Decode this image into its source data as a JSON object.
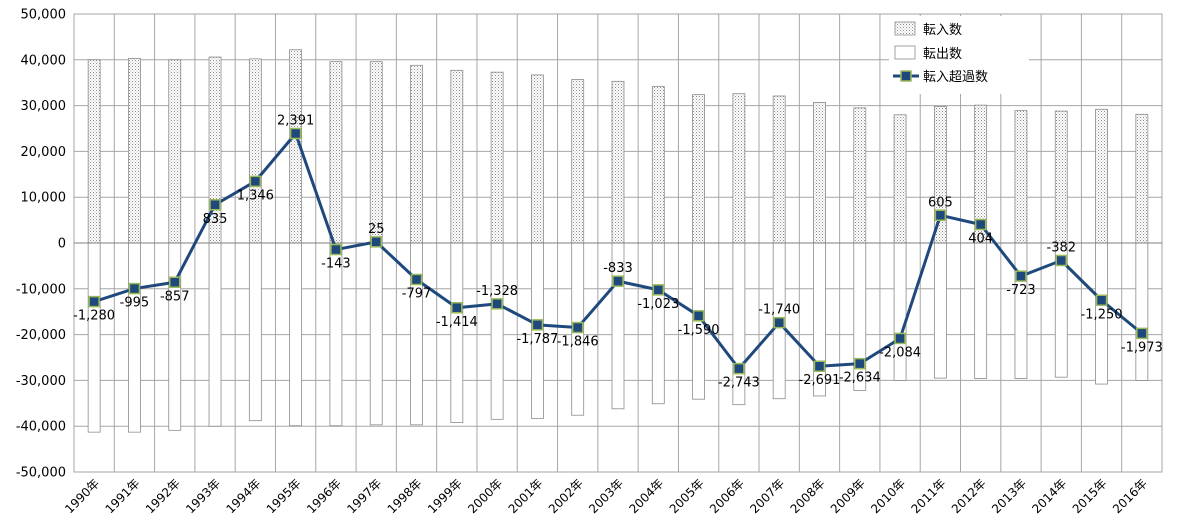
{
  "chart_data": {
    "type": "bar",
    "categories": [
      "1990年",
      "1991年",
      "1992年",
      "1993年",
      "1994年",
      "1995年",
      "1996年",
      "1997年",
      "1998年",
      "1999年",
      "2000年",
      "2001年",
      "2002年",
      "2003年",
      "2004年",
      "2005年",
      "2006年",
      "2007年",
      "2008年",
      "2009年",
      "2010年",
      "2011年",
      "2012年",
      "2013年",
      "2014年",
      "2015年",
      "2016年"
    ],
    "ylim": [
      -50000,
      50000
    ],
    "yticks": [
      {
        "value": 50000,
        "label": "50,000"
      },
      {
        "value": 40000,
        "label": "40,000"
      },
      {
        "value": 30000,
        "label": "30,000"
      },
      {
        "value": 20000,
        "label": "20,000"
      },
      {
        "value": 10000,
        "label": "10,000"
      },
      {
        "value": 0,
        "label": "0"
      },
      {
        "value": -10000,
        "label": "-10,000"
      },
      {
        "value": -20000,
        "label": "-20,000"
      },
      {
        "value": -30000,
        "label": "-30,000"
      },
      {
        "value": -40000,
        "label": "-40,000"
      },
      {
        "value": -50000,
        "label": "-50,000"
      }
    ],
    "grid": true,
    "legend_position": "top-right",
    "series": [
      {
        "name": "転入数",
        "kind": "bar",
        "pattern": "dotted",
        "values": [
          40000,
          40300,
          40000,
          40600,
          40200,
          42200,
          39600,
          39600,
          38800,
          37700,
          37300,
          36700,
          35700,
          35300,
          34200,
          32400,
          32600,
          32100,
          30700,
          29500,
          28000,
          29800,
          30100,
          28900,
          28800,
          29200,
          28100
        ]
      },
      {
        "name": "転出数",
        "kind": "bar",
        "pattern": "hollow",
        "values": [
          -41300,
          -41300,
          -40900,
          -40000,
          -38800,
          -39900,
          -39900,
          -39700,
          -39700,
          -39200,
          -38500,
          -38300,
          -37600,
          -36200,
          -35100,
          -34100,
          -35300,
          -34000,
          -33400,
          -32200,
          -30000,
          -29500,
          -29600,
          -29600,
          -29300,
          -30800,
          -30000
        ]
      },
      {
        "name": "転入超過数",
        "kind": "line",
        "color": "#1f497d",
        "marker_color": "#1f497d",
        "marker_edge": "#9bbb59",
        "values": [
          -12800,
          -9950,
          -8570,
          8350,
          13460,
          23910,
          -1430,
          250,
          -7970,
          -14140,
          -13280,
          -17870,
          -18460,
          -8330,
          -10230,
          -15900,
          -27430,
          -17400,
          -26910,
          -26340,
          -20840,
          6050,
          4040,
          -7230,
          -3820,
          -12500,
          -19730
        ],
        "data_labels": [
          "-1,280",
          "-995",
          "-857",
          "835",
          "1,346",
          "2,391",
          "-143",
          "25",
          "-797",
          "-1,414",
          "-1,328",
          "-1,787",
          "-1,846",
          "-833",
          "-1,023",
          "-1,590",
          "-2,743",
          "-1,740",
          "-2,691",
          "-2,634",
          "-2,084",
          "605",
          "404",
          "-723",
          "-382",
          "-1,250",
          "-1,973"
        ]
      }
    ]
  }
}
